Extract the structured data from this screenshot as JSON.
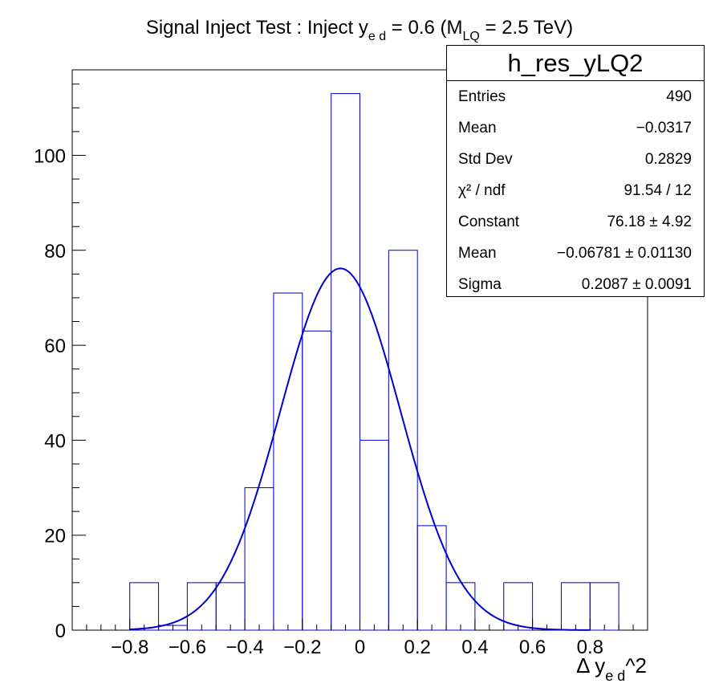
{
  "chart_data": {
    "type": "bar",
    "title": {
      "main": "Signal Inject Test : Inject y",
      "sub": "e d",
      "rest": " = 0.6 (M",
      "sub2": "LQ",
      "rest2": " = 2.5 TeV)"
    },
    "xlabel": {
      "main": "Δ y",
      "sub": "e d",
      "rest": "^2"
    },
    "xlim": [
      -1.0,
      1.0
    ],
    "ylim": [
      0,
      118
    ],
    "x_ticks": [
      -0.8,
      -0.6,
      -0.4,
      -0.2,
      0,
      0.2,
      0.4,
      0.6,
      0.8
    ],
    "x_tick_labels": [
      "−0.8",
      "−0.6",
      "−0.4",
      "−0.2",
      "0",
      "0.2",
      "0.4",
      "0.6",
      "0.8"
    ],
    "y_ticks": [
      0,
      20,
      40,
      60,
      80,
      100
    ],
    "y_tick_labels": [
      "0",
      "20",
      "40",
      "60",
      "80",
      "100"
    ],
    "histogram": {
      "bin_edges": [
        -1.0,
        -0.9,
        -0.8,
        -0.7,
        -0.6,
        -0.5,
        -0.4,
        -0.3,
        -0.2,
        -0.1,
        0.0,
        0.1,
        0.2,
        0.3,
        0.4,
        0.5,
        0.6,
        0.7,
        0.8,
        0.9,
        1.0
      ],
      "counts": [
        0,
        0,
        10,
        1,
        10,
        10,
        30,
        71,
        63,
        113,
        40,
        80,
        22,
        10,
        0,
        10,
        0,
        10,
        10,
        0
      ],
      "color": "#0000cc"
    },
    "fit": {
      "function": "gaus",
      "constant": 76.18,
      "mean": -0.06781,
      "sigma": 0.2087,
      "color": "#0000cc"
    },
    "grid": false,
    "legend": "top-right"
  },
  "stats": {
    "title": "h_res_yLQ2",
    "rows": [
      {
        "key": "Entries",
        "value": "490"
      },
      {
        "key": "Mean",
        "value": "−0.0317"
      },
      {
        "key": "Std Dev",
        "value": "0.2829"
      },
      {
        "key": "χ² / ndf",
        "value": "91.54 / 12"
      },
      {
        "key": "Constant",
        "value": "76.18 ± 4.92"
      },
      {
        "key": "Mean",
        "value": "−0.06781 ± 0.01130"
      },
      {
        "key": "Sigma",
        "value": "0.2087 ± 0.0091"
      }
    ]
  }
}
